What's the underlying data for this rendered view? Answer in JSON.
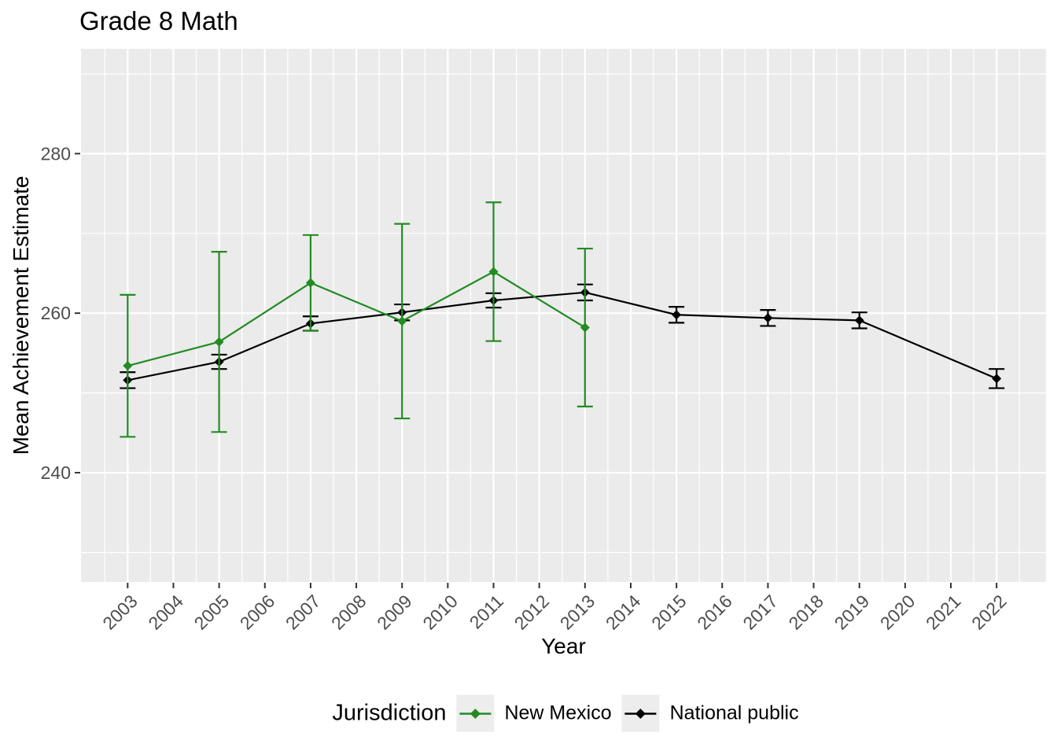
{
  "chart_data": {
    "type": "line",
    "title": "Grade 8 Math",
    "xlabel": "Year",
    "ylabel": "Mean Achievement Estimate",
    "xlim": [
      2001.98,
      2023.08
    ],
    "ylim": [
      226.3,
      293.15
    ],
    "x_ticks": [
      2003,
      2004,
      2005,
      2006,
      2007,
      2008,
      2009,
      2010,
      2011,
      2012,
      2013,
      2014,
      2015,
      2016,
      2017,
      2018,
      2019,
      2020,
      2021,
      2022
    ],
    "x_minor": [
      2002.5,
      2003.5,
      2004.5,
      2005.5,
      2006.5,
      2007.5,
      2008.5,
      2009.5,
      2010.5,
      2011.5,
      2012.5,
      2013.5,
      2014.5,
      2015.5,
      2016.5,
      2017.5,
      2018.5,
      2019.5,
      2020.5,
      2021.5,
      2022.5
    ],
    "y_ticks": [
      240,
      260,
      280
    ],
    "y_minor": [
      230,
      250,
      270,
      290
    ],
    "grid": true,
    "legend_position": "bottom",
    "marker": "diamond",
    "series": [
      {
        "name": "National public",
        "color": "#000000",
        "x": [
          2003,
          2005,
          2007,
          2009,
          2011,
          2013,
          2015,
          2017,
          2019,
          2022
        ],
        "y": [
          251.6,
          253.9,
          258.7,
          260.1,
          261.6,
          262.6,
          259.8,
          259.4,
          259.1,
          251.8
        ],
        "err": [
          1.0,
          0.9,
          0.9,
          1.0,
          0.9,
          1.0,
          1.0,
          1.0,
          1.0,
          1.2
        ]
      },
      {
        "name": "New Mexico",
        "color": "#228B22",
        "x": [
          2003,
          2005,
          2007,
          2009,
          2011,
          2013
        ],
        "y": [
          253.4,
          256.4,
          263.8,
          259.0,
          265.2,
          258.2
        ],
        "err": [
          8.9,
          11.3,
          6.0,
          12.2,
          8.7,
          9.9
        ]
      }
    ]
  },
  "legend": {
    "title": "Jurisdiction",
    "items": [
      {
        "label": "New Mexico",
        "color": "#228B22"
      },
      {
        "label": "National public",
        "color": "#000000"
      }
    ]
  },
  "colors": {
    "panel_bg": "#EBEBEB",
    "grid": "#FFFFFF",
    "axis_text": "#4D4D4D",
    "tick_mark": "#333333",
    "legend_key_bg": "#EDEDED",
    "title_text": "#000000"
  }
}
